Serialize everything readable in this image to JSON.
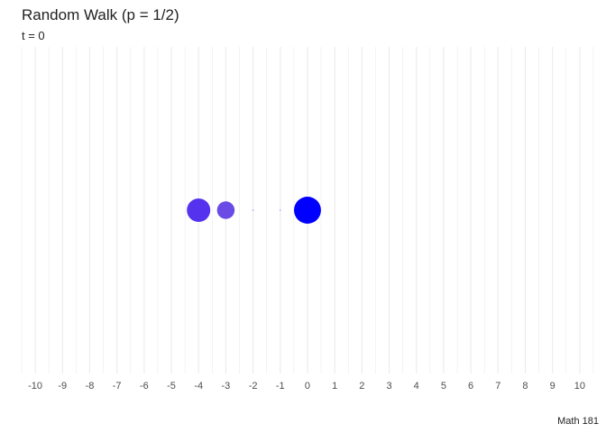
{
  "chart_data": {
    "type": "scatter",
    "title": "Random Walk (p = 1/2)",
    "subtitle": "t = 0",
    "caption": "Math 181",
    "xlabel": "",
    "ylabel": "",
    "xlim": [
      -10.5,
      10.7
    ],
    "x_ticks": [
      -10,
      -9,
      -8,
      -7,
      -6,
      -5,
      -4,
      -3,
      -2,
      -1,
      0,
      1,
      2,
      3,
      4,
      5,
      6,
      7,
      8,
      9,
      10
    ],
    "x_tick_labels": [
      "-10",
      "-9",
      "-8",
      "-7",
      "-6",
      "-5",
      "-4",
      "-3",
      "-2",
      "-1",
      "0",
      "1",
      "2",
      "3",
      "4",
      "5",
      "6",
      "7",
      "8",
      "9",
      "10"
    ],
    "grid": true,
    "legend": "none",
    "points": [
      {
        "x": -4,
        "size": 1.0,
        "color": "#5533ee",
        "opacity": 1.0
      },
      {
        "x": -3,
        "size": 0.75,
        "color": "#6a4be6",
        "opacity": 1.0
      },
      {
        "x": -2,
        "size": 0.08,
        "color": "#b8b0e8",
        "opacity": 0.8
      },
      {
        "x": -1,
        "size": 0.08,
        "color": "#b8b0e8",
        "opacity": 0.8
      },
      {
        "x": 0,
        "size": 1.15,
        "color": "#0000ff",
        "opacity": 1.0
      }
    ]
  },
  "colors": {
    "background": "#ffffff",
    "grid": "#ebebeb",
    "text": "#222222",
    "tick_text": "#4d4d4d"
  }
}
